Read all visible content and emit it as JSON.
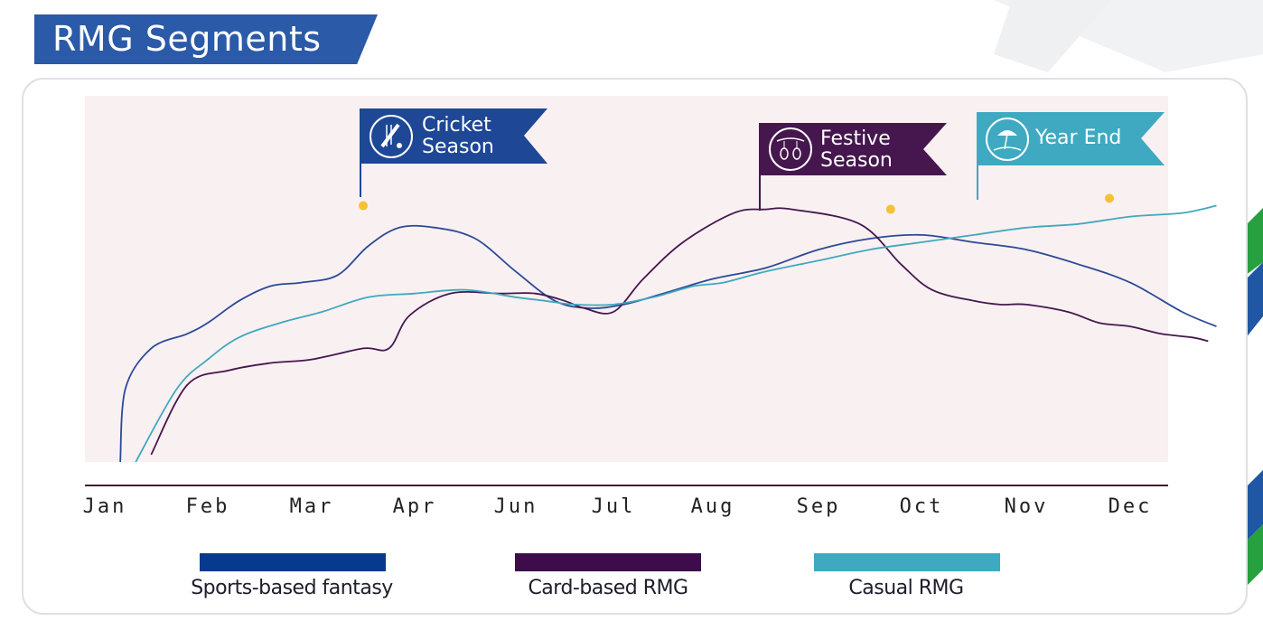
{
  "page_title": "RMG Segments",
  "colors": {
    "title_bg": "#2a5aa8",
    "plot_bg": "#f9f0f2",
    "sports": "#2b4a96",
    "card": "#45174e",
    "casual": "#41a8be",
    "cricket_flag": "#1e4796",
    "festive_flag": "#45174e",
    "yearend_flag": "#3ea9c1",
    "marker": "#f6c134"
  },
  "annotations": [
    {
      "line1": "Cricket",
      "line2": "Season",
      "icon": "cricket-icon",
      "x_pos": 2.5,
      "y": 70
    },
    {
      "line1": "Festive",
      "line2": "Season",
      "icon": "lantern-icon",
      "x_pos": 7.7,
      "y": 69
    },
    {
      "line1": "Year End",
      "line2": "",
      "icon": "beach-icon",
      "x_pos": 9.8,
      "y": 72
    }
  ],
  "chart_data": {
    "type": "line",
    "title": "",
    "xlabel": "",
    "ylabel": "",
    "categories": [
      "Jan",
      "Feb",
      "Mar",
      "Apr",
      "Jun",
      "Jul",
      "Aug",
      "Sep",
      "Oct",
      "Nov",
      "Dec"
    ],
    "ylim": [
      0,
      100
    ],
    "grid": false,
    "legend": "bottom",
    "series": [
      {
        "name": "Sports-based fantasy",
        "x": [
          0.15,
          0.2,
          0.45,
          0.8,
          1.0,
          1.3,
          1.6,
          1.9,
          2.25,
          2.55,
          2.85,
          3.2,
          3.6,
          4.0,
          4.4,
          4.75,
          5.1,
          5.5,
          6.0,
          6.5,
          7.0,
          7.5,
          8.0,
          8.5,
          9.0,
          9.5,
          10.0,
          10.5,
          10.83
        ],
        "y": [
          0,
          20,
          31,
          35,
          38,
          44,
          48,
          49,
          51,
          59,
          64,
          64,
          61,
          52,
          44,
          42,
          43,
          46,
          50,
          53,
          58,
          61,
          62,
          60,
          58,
          54,
          49,
          41,
          37
        ]
      },
      {
        "name": "Card-based RMG",
        "x": [
          0.45,
          0.8,
          1.2,
          1.6,
          2.0,
          2.5,
          2.75,
          2.95,
          3.35,
          3.85,
          4.2,
          4.5,
          4.7,
          5.0,
          5.3,
          5.7,
          6.2,
          6.5,
          6.75,
          7.4,
          7.8,
          8.1,
          8.5,
          8.75,
          9.0,
          9.4,
          9.7,
          10.0,
          10.3,
          10.6,
          10.75
        ],
        "y": [
          2,
          21,
          25,
          27,
          28,
          31,
          31,
          40,
          46,
          46,
          46,
          44,
          42,
          41,
          50,
          60,
          68,
          69,
          69,
          65,
          54,
          47,
          44,
          43,
          43,
          41,
          38,
          37,
          35,
          34,
          33
        ]
      },
      {
        "name": "Casual RMG",
        "x": [
          0.3,
          0.7,
          1.0,
          1.3,
          1.7,
          2.1,
          2.55,
          3.0,
          3.5,
          4.0,
          4.3,
          4.6,
          5.0,
          5.4,
          5.8,
          6.1,
          6.5,
          7.0,
          7.5,
          8.0,
          8.5,
          9.0,
          9.5,
          10.0,
          10.5,
          10.83
        ],
        "y": [
          0,
          20,
          28,
          34,
          38,
          41,
          45,
          46,
          47,
          45,
          44,
          43,
          43,
          45,
          48,
          49,
          52,
          55,
          58,
          60,
          62,
          64,
          65,
          67,
          68,
          70
        ]
      }
    ]
  }
}
